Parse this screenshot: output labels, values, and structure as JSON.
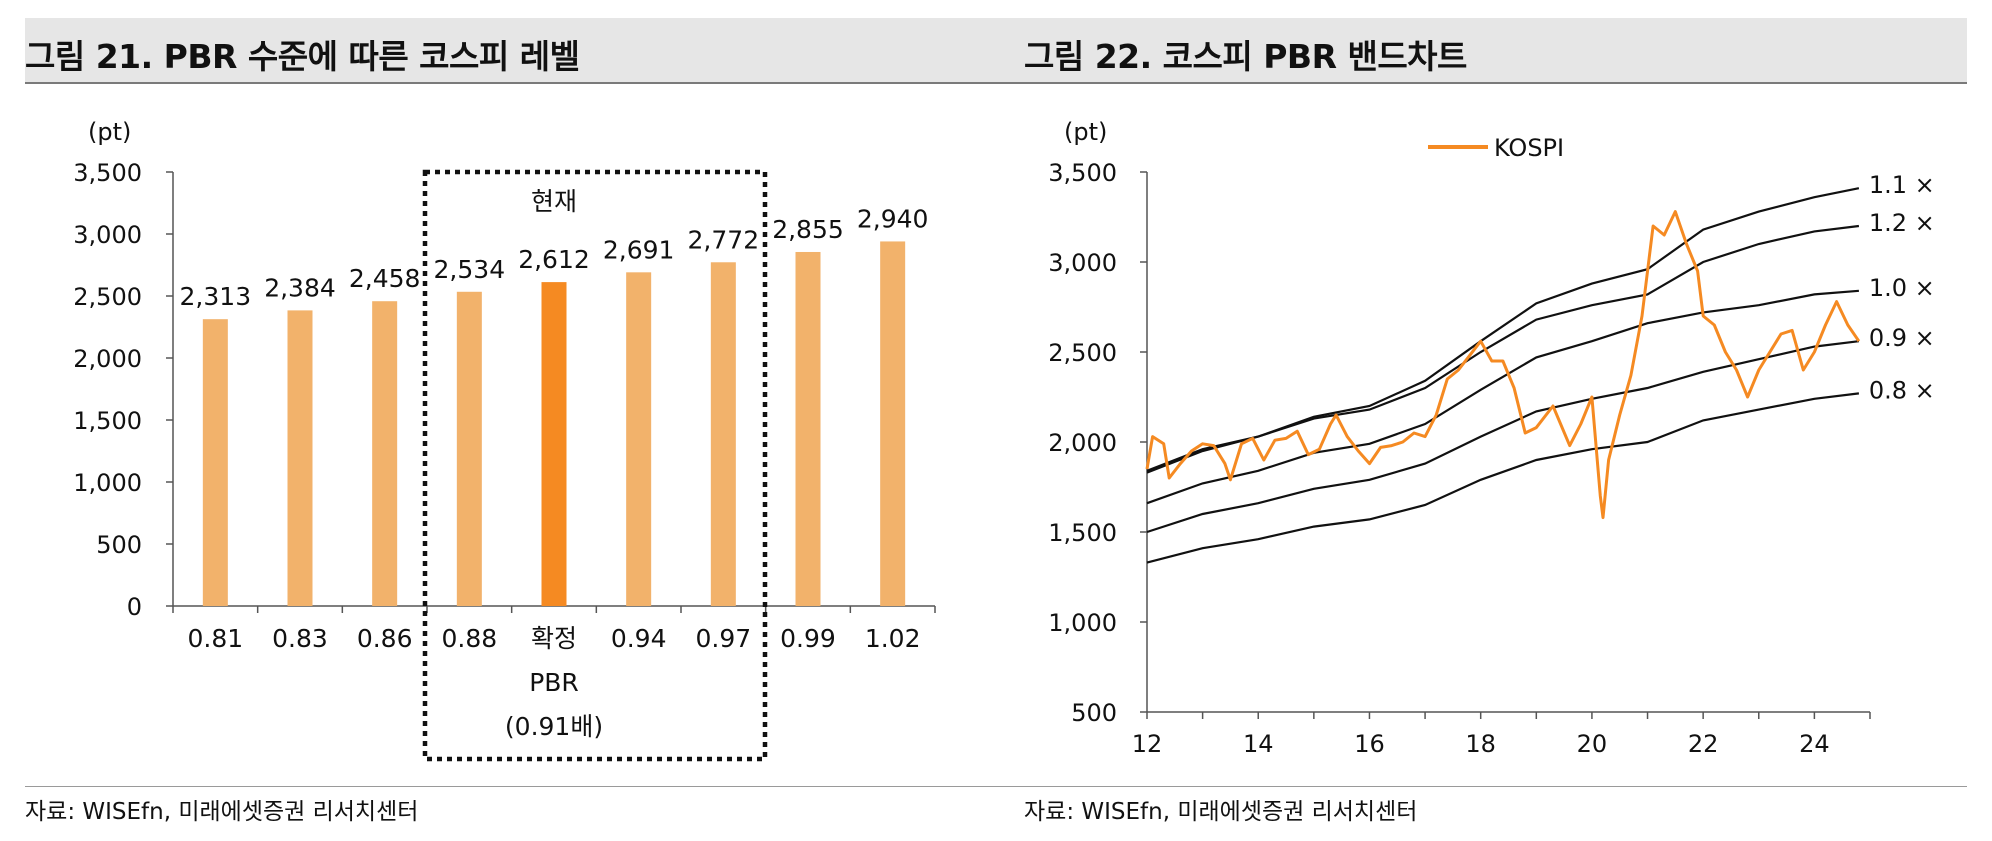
{
  "left": {
    "title": "그림 21. PBR 수준에 따른 코스피 레벨",
    "source": "자료: WISEfn, 미래에셋증권 리서치센터",
    "chart_data": {
      "type": "bar",
      "unit_label": "(pt)",
      "ylim": [
        0,
        3500
      ],
      "yticks": [
        0,
        500,
        1000,
        1500,
        2000,
        2500,
        3000,
        3500
      ],
      "ytick_labels": [
        "0",
        "500",
        "1,000",
        "1,500",
        "2,000",
        "2,500",
        "3,000",
        "3,500"
      ],
      "categories": [
        "0.81",
        "0.83",
        "0.86",
        "0.88",
        "확정",
        "0.94",
        "0.97",
        "0.99",
        "1.02"
      ],
      "values": [
        2313,
        2384,
        2458,
        2534,
        2612,
        2691,
        2772,
        2855,
        2940
      ],
      "value_labels": [
        "2,313",
        "2,384",
        "2,458",
        "2,534",
        "2,612",
        "2,691",
        "2,772",
        "2,855",
        "2,940"
      ],
      "highlight_index": 4,
      "highlight_sublabels": [
        "PBR",
        "(0.91배)"
      ],
      "box_label": "현재",
      "colors": {
        "bar": "#f2b26b",
        "highlight": "#f58a22",
        "axis": "#555555"
      }
    }
  },
  "right": {
    "title": "그림 22. 코스피 PBR 밴드차트",
    "source": "자료: WISEfn, 미래에셋증권 리서치센터",
    "chart_data": {
      "type": "line",
      "unit_label": "(pt)",
      "legend": "KOSPI",
      "xlim": [
        2012,
        2025
      ],
      "xticks": [
        2012,
        2014,
        2016,
        2018,
        2020,
        2022,
        2024
      ],
      "xtick_labels": [
        "12",
        "14",
        "16",
        "18",
        "20",
        "22",
        "24"
      ],
      "ylim": [
        500,
        3500
      ],
      "yticks": [
        500,
        1000,
        1500,
        2000,
        2500,
        3000,
        3500
      ],
      "ytick_labels": [
        "500",
        "1,000",
        "1,500",
        "2,000",
        "2,500",
        "3,000",
        "3,500"
      ],
      "colors": {
        "kospi": "#f58a22",
        "band": "#111111"
      },
      "bands": [
        {
          "name": "1.2 ×",
          "points": [
            [
              2012,
              1840
            ],
            [
              2013,
              1960
            ],
            [
              2014,
              2030
            ],
            [
              2015,
              2130
            ],
            [
              2016,
              2180
            ],
            [
              2017,
              2300
            ],
            [
              2018,
              2500
            ],
            [
              2019,
              2680
            ],
            [
              2020,
              2760
            ],
            [
              2021,
              2820
            ],
            [
              2022,
              3000
            ],
            [
              2023,
              3100
            ],
            [
              2024,
              3170
            ],
            [
              2024.8,
              3200
            ]
          ]
        },
        {
          "name": "1.1 ×",
          "points": [
            [
              2012,
              1830
            ],
            [
              2013,
              1950
            ],
            [
              2014,
              2030
            ],
            [
              2015,
              2140
            ],
            [
              2016,
              2200
            ],
            [
              2017,
              2340
            ],
            [
              2018,
              2560
            ],
            [
              2019,
              2770
            ],
            [
              2020,
              2880
            ],
            [
              2021,
              2960
            ],
            [
              2022,
              3180
            ],
            [
              2023,
              3280
            ],
            [
              2024,
              3360
            ],
            [
              2024.8,
              3410
            ]
          ]
        },
        {
          "name": "1.0 ×",
          "points": [
            [
              2012,
              1660
            ],
            [
              2013,
              1770
            ],
            [
              2014,
              1840
            ],
            [
              2015,
              1940
            ],
            [
              2016,
              1990
            ],
            [
              2017,
              2100
            ],
            [
              2018,
              2290
            ],
            [
              2019,
              2470
            ],
            [
              2020,
              2560
            ],
            [
              2021,
              2660
            ],
            [
              2022,
              2720
            ],
            [
              2023,
              2760
            ],
            [
              2024,
              2820
            ],
            [
              2024.8,
              2840
            ]
          ]
        },
        {
          "name": "0.9 ×",
          "points": [
            [
              2012,
              1500
            ],
            [
              2013,
              1600
            ],
            [
              2014,
              1660
            ],
            [
              2015,
              1740
            ],
            [
              2016,
              1790
            ],
            [
              2017,
              1880
            ],
            [
              2018,
              2030
            ],
            [
              2019,
              2170
            ],
            [
              2020,
              2240
            ],
            [
              2021,
              2300
            ],
            [
              2022,
              2390
            ],
            [
              2023,
              2460
            ],
            [
              2024,
              2530
            ],
            [
              2024.8,
              2560
            ]
          ]
        },
        {
          "name": "0.8 ×",
          "points": [
            [
              2012,
              1330
            ],
            [
              2013,
              1410
            ],
            [
              2014,
              1460
            ],
            [
              2015,
              1530
            ],
            [
              2016,
              1570
            ],
            [
              2017,
              1650
            ],
            [
              2018,
              1790
            ],
            [
              2019,
              1900
            ],
            [
              2020,
              1960
            ],
            [
              2021,
              2000
            ],
            [
              2022,
              2120
            ],
            [
              2023,
              2180
            ],
            [
              2024,
              2240
            ],
            [
              2024.8,
              2270
            ]
          ]
        }
      ],
      "series": [
        {
          "name": "KOSPI",
          "points": [
            [
              2012,
              1850
            ],
            [
              2012.1,
              2030
            ],
            [
              2012.3,
              1990
            ],
            [
              2012.4,
              1800
            ],
            [
              2012.6,
              1880
            ],
            [
              2012.8,
              1950
            ],
            [
              2013,
              1990
            ],
            [
              2013.2,
              1980
            ],
            [
              2013.4,
              1880
            ],
            [
              2013.5,
              1790
            ],
            [
              2013.7,
              1990
            ],
            [
              2013.9,
              2020
            ],
            [
              2014.1,
              1900
            ],
            [
              2014.3,
              2010
            ],
            [
              2014.5,
              2020
            ],
            [
              2014.7,
              2060
            ],
            [
              2014.9,
              1930
            ],
            [
              2015.1,
              1960
            ],
            [
              2015.3,
              2100
            ],
            [
              2015.4,
              2150
            ],
            [
              2015.6,
              2030
            ],
            [
              2015.8,
              1950
            ],
            [
              2016,
              1880
            ],
            [
              2016.2,
              1970
            ],
            [
              2016.4,
              1980
            ],
            [
              2016.6,
              2000
            ],
            [
              2016.8,
              2050
            ],
            [
              2017,
              2030
            ],
            [
              2017.2,
              2150
            ],
            [
              2017.4,
              2350
            ],
            [
              2017.6,
              2400
            ],
            [
              2017.8,
              2480
            ],
            [
              2018,
              2560
            ],
            [
              2018.2,
              2450
            ],
            [
              2018.4,
              2450
            ],
            [
              2018.6,
              2300
            ],
            [
              2018.8,
              2050
            ],
            [
              2019,
              2080
            ],
            [
              2019.3,
              2200
            ],
            [
              2019.6,
              1980
            ],
            [
              2019.8,
              2100
            ],
            [
              2020,
              2250
            ],
            [
              2020.15,
              1700
            ],
            [
              2020.2,
              1580
            ],
            [
              2020.3,
              1900
            ],
            [
              2020.5,
              2150
            ],
            [
              2020.7,
              2370
            ],
            [
              2020.9,
              2700
            ],
            [
              2021.1,
              3200
            ],
            [
              2021.3,
              3150
            ],
            [
              2021.5,
              3280
            ],
            [
              2021.7,
              3100
            ],
            [
              2021.9,
              2950
            ],
            [
              2022,
              2700
            ],
            [
              2022.2,
              2650
            ],
            [
              2022.4,
              2500
            ],
            [
              2022.6,
              2400
            ],
            [
              2022.8,
              2250
            ],
            [
              2023,
              2400
            ],
            [
              2023.2,
              2500
            ],
            [
              2023.4,
              2600
            ],
            [
              2023.6,
              2620
            ],
            [
              2023.8,
              2400
            ],
            [
              2024,
              2500
            ],
            [
              2024.2,
              2650
            ],
            [
              2024.4,
              2780
            ],
            [
              2024.6,
              2650
            ],
            [
              2024.8,
              2560
            ]
          ]
        }
      ]
    }
  }
}
